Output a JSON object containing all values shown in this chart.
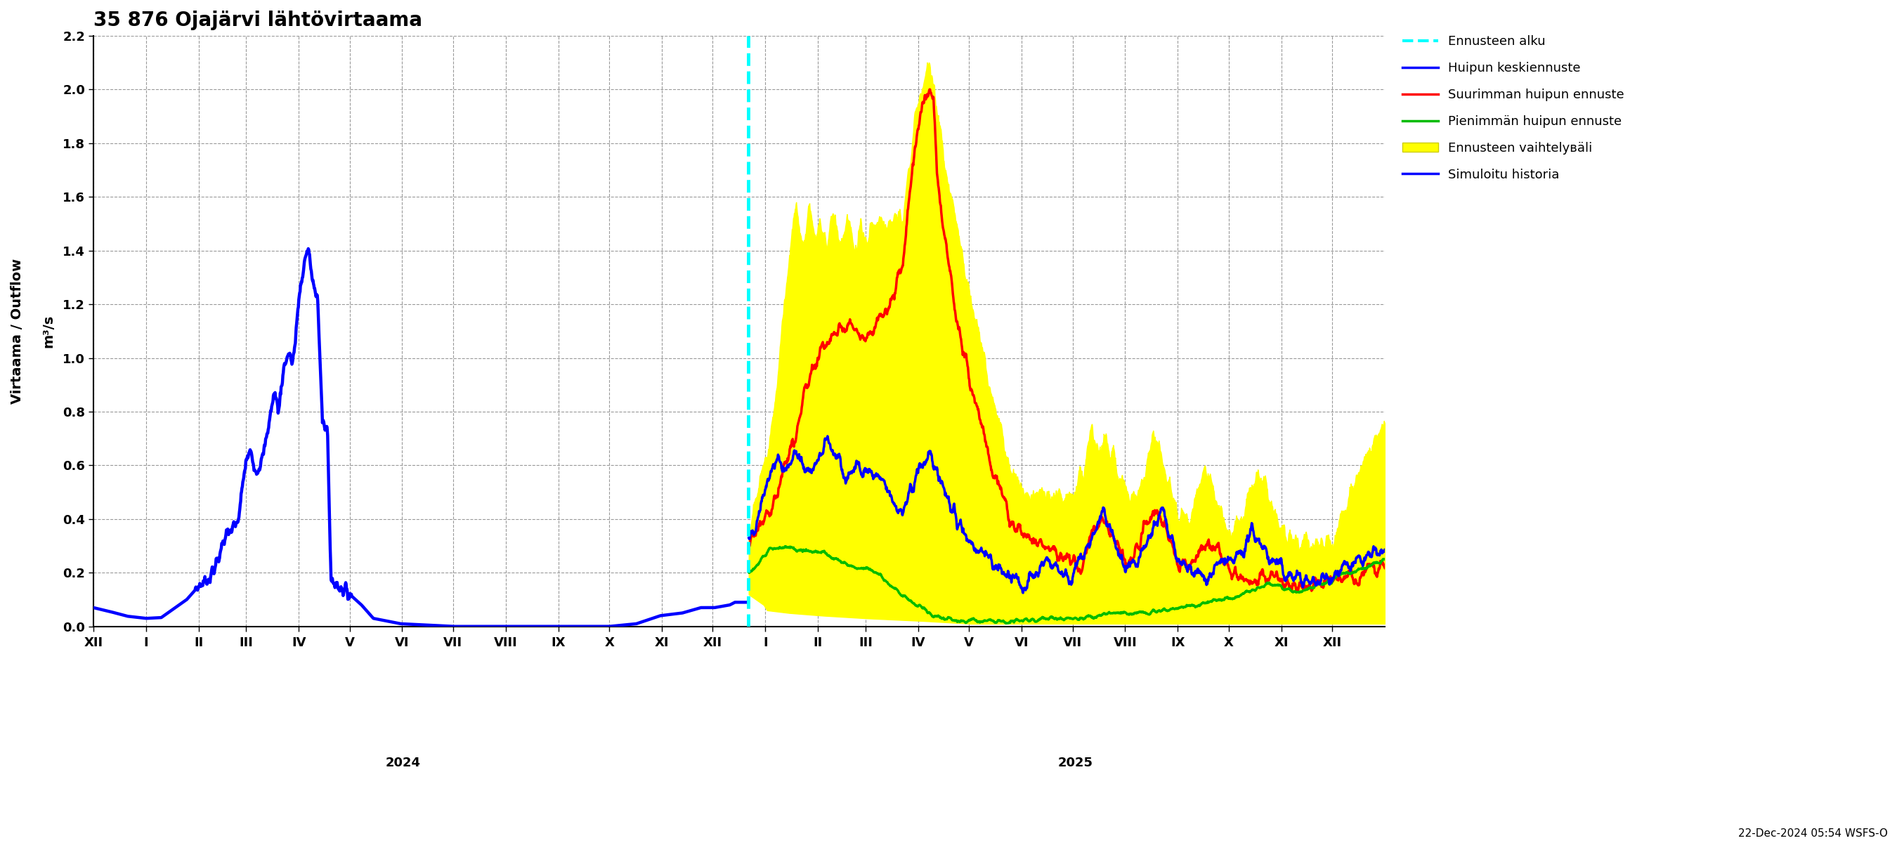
{
  "title": "35 876 Ojajärvi lähtövirtaama",
  "ylabel1": "Virtaama / Outflow",
  "ylabel2": "m³/s",
  "ylim": [
    0.0,
    2.2
  ],
  "yticks": [
    0.0,
    0.2,
    0.4,
    0.6,
    0.8,
    1.0,
    1.2,
    1.4,
    1.6,
    1.8,
    2.0,
    2.2
  ],
  "footnote": "22-Dec-2024 05:54 WSFS-O",
  "month_labels": [
    "XII",
    "I",
    "II",
    "III",
    "IV",
    "V",
    "VI",
    "VII",
    "VIII",
    "IX",
    "X",
    "XI",
    "XII",
    "I",
    "II",
    "III",
    "IV",
    "V",
    "VI",
    "VII",
    "VIII",
    "IX",
    "X",
    "XI",
    "XII"
  ],
  "month_days": [
    31,
    31,
    28,
    31,
    30,
    31,
    30,
    31,
    31,
    30,
    31,
    30,
    31,
    31,
    28,
    31,
    30,
    31,
    30,
    31,
    31,
    30,
    31,
    30,
    31
  ],
  "year_labels": [
    "2024",
    "2025"
  ],
  "legend_entries": [
    {
      "label": "Ennusteen alku",
      "color": "#00ffff",
      "linestyle": "dashed",
      "linewidth": 3
    },
    {
      "label": "Huipun keskiennuste",
      "color": "#0000ff",
      "linestyle": "solid",
      "linewidth": 2.5
    },
    {
      "label": "Suurimman huipun ennuste",
      "color": "#ff0000",
      "linestyle": "solid",
      "linewidth": 2.5
    },
    {
      "label": "Pienimmän huipun ennuste",
      "color": "#00bb00",
      "linestyle": "solid",
      "linewidth": 2.5
    },
    {
      "label": "Ennusteen vaihtelувäli",
      "color": "#ffff00",
      "linestyle": "solid",
      "linewidth": 10
    },
    {
      "label": "Simuloitu historia",
      "color": "#0000ff",
      "linestyle": "solid",
      "linewidth": 2.5
    }
  ],
  "background_color": "#ffffff",
  "grid_color": "#999999"
}
